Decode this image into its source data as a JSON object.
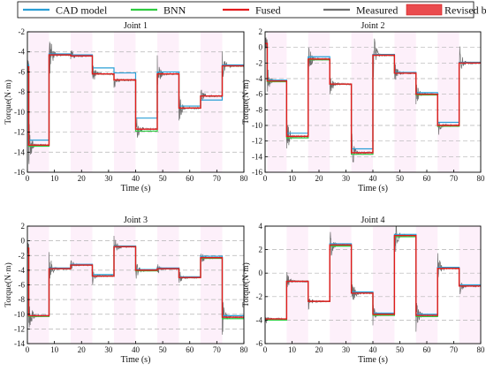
{
  "legend": {
    "items": [
      {
        "label": "CAD model",
        "color": "#2a9fd6",
        "kind": "line"
      },
      {
        "label": "BNN",
        "color": "#2ecc40",
        "kind": "line"
      },
      {
        "label": "Fused",
        "color": "#e41a1c",
        "kind": "line"
      },
      {
        "label": "Measured",
        "color": "#6e6e6e",
        "kind": "line"
      },
      {
        "label": "Revised by σ",
        "color": "#e8383b",
        "kind": "patch"
      }
    ]
  },
  "chart_data": [
    {
      "type": "line",
      "title": "Joint 1",
      "xlabel": "Time (s)",
      "ylabel": "Torque(N·m)",
      "xlim": [
        0,
        80
      ],
      "ylim": [
        -16,
        -2
      ],
      "xticks": [
        0,
        10,
        20,
        30,
        40,
        50,
        60,
        70,
        80
      ],
      "yticks": [
        -16,
        -14,
        -12,
        -10,
        -8,
        -6,
        -4,
        -2
      ],
      "grid": "horizontal-dashed",
      "segments": [
        {
          "x": [
            0,
            0.5
          ],
          "measured": -5.5,
          "cad": -5.3,
          "bnn": -5.5,
          "fused": -5.5
        },
        {
          "x": [
            0.5,
            8
          ],
          "measured": -13.3,
          "cad": -12.8,
          "bnn": -13.4,
          "fused": -13.3
        },
        {
          "x": [
            8,
            16
          ],
          "measured": -4.3,
          "cad": -4.2,
          "bnn": -4.3,
          "fused": -4.3
        },
        {
          "x": [
            16,
            24
          ],
          "measured": -4.4,
          "cad": -4.3,
          "bnn": -4.4,
          "fused": -4.4
        },
        {
          "x": [
            24,
            32
          ],
          "measured": -6.2,
          "cad": -5.6,
          "bnn": -6.2,
          "fused": -6.2
        },
        {
          "x": [
            32,
            40
          ],
          "measured": -6.8,
          "cad": -6.1,
          "bnn": -6.8,
          "fused": -6.8
        },
        {
          "x": [
            40,
            48
          ],
          "measured": -11.7,
          "cad": -10.6,
          "bnn": -11.9,
          "fused": -11.7
        },
        {
          "x": [
            48,
            56
          ],
          "measured": -6.2,
          "cad": -6.0,
          "bnn": -6.2,
          "fused": -6.2
        },
        {
          "x": [
            56,
            64
          ],
          "measured": -9.6,
          "cad": -9.4,
          "bnn": -9.6,
          "fused": -9.6
        },
        {
          "x": [
            64,
            72
          ],
          "measured": -8.4,
          "cad": -8.8,
          "bnn": -8.4,
          "fused": -8.4
        },
        {
          "x": [
            72,
            80
          ],
          "measured": -5.4,
          "cad": -5.3,
          "bnn": -5.4,
          "fused": -5.4
        }
      ]
    },
    {
      "type": "line",
      "title": "Joint 2",
      "xlabel": "Time (s)",
      "ylabel": "Torque(N·m)",
      "xlim": [
        0,
        80
      ],
      "ylim": [
        -16,
        2
      ],
      "xticks": [
        0,
        10,
        20,
        30,
        40,
        50,
        60,
        70,
        80
      ],
      "yticks": [
        -16,
        -14,
        -12,
        -10,
        -8,
        -6,
        -4,
        -2,
        0,
        2
      ],
      "grid": "horizontal-dashed",
      "segments": [
        {
          "x": [
            0,
            0.8
          ],
          "measured": 0.5,
          "cad": 0.5,
          "bnn": 0.5,
          "fused": 0.5
        },
        {
          "x": [
            0.8,
            8
          ],
          "measured": -4.3,
          "cad": -4.2,
          "bnn": -4.4,
          "fused": -4.3
        },
        {
          "x": [
            8,
            16
          ],
          "measured": -11.4,
          "cad": -11.0,
          "bnn": -11.6,
          "fused": -11.4
        },
        {
          "x": [
            16,
            24
          ],
          "measured": -1.5,
          "cad": -1.2,
          "bnn": -1.6,
          "fused": -1.5
        },
        {
          "x": [
            24,
            32
          ],
          "measured": -4.7,
          "cad": -4.7,
          "bnn": -4.7,
          "fused": -4.7
        },
        {
          "x": [
            32,
            40
          ],
          "measured": -13.5,
          "cad": -13.0,
          "bnn": -13.7,
          "fused": -13.5
        },
        {
          "x": [
            40,
            48
          ],
          "measured": -1.0,
          "cad": -0.9,
          "bnn": -1.0,
          "fused": -1.0
        },
        {
          "x": [
            48,
            56
          ],
          "measured": -3.3,
          "cad": -3.2,
          "bnn": -3.3,
          "fused": -3.3
        },
        {
          "x": [
            56,
            64
          ],
          "measured": -6.0,
          "cad": -5.8,
          "bnn": -6.1,
          "fused": -6.0
        },
        {
          "x": [
            64,
            72
          ],
          "measured": -10.0,
          "cad": -9.6,
          "bnn": -10.1,
          "fused": -10.0
        },
        {
          "x": [
            72,
            80
          ],
          "measured": -2.0,
          "cad": -1.9,
          "bnn": -2.0,
          "fused": -2.0
        }
      ]
    },
    {
      "type": "line",
      "title": "Joint 3",
      "xlabel": "Time (s)",
      "ylabel": "Torque(N·m)",
      "xlim": [
        0,
        80
      ],
      "ylim": [
        -14,
        2
      ],
      "xticks": [
        0,
        10,
        20,
        30,
        40,
        50,
        60,
        70,
        80
      ],
      "yticks": [
        -14,
        -12,
        -10,
        -8,
        -6,
        -4,
        -2,
        0,
        2
      ],
      "grid": "horizontal-dashed",
      "segments": [
        {
          "x": [
            0,
            0.5
          ],
          "measured": -1.0,
          "cad": -1.0,
          "bnn": -1.0,
          "fused": -1.0
        },
        {
          "x": [
            0.5,
            8
          ],
          "measured": -10.2,
          "cad": -10.2,
          "bnn": -10.3,
          "fused": -10.2
        },
        {
          "x": [
            8,
            16
          ],
          "measured": -3.8,
          "cad": -3.7,
          "bnn": -3.8,
          "fused": -3.8
        },
        {
          "x": [
            16,
            24
          ],
          "measured": -3.3,
          "cad": -3.2,
          "bnn": -3.3,
          "fused": -3.3
        },
        {
          "x": [
            24,
            32
          ],
          "measured": -4.8,
          "cad": -4.6,
          "bnn": -4.8,
          "fused": -4.8
        },
        {
          "x": [
            32,
            40
          ],
          "measured": -0.8,
          "cad": -0.7,
          "bnn": -0.8,
          "fused": -0.8
        },
        {
          "x": [
            40,
            48
          ],
          "measured": -4.0,
          "cad": -3.9,
          "bnn": -4.1,
          "fused": -4.0
        },
        {
          "x": [
            48,
            56
          ],
          "measured": -3.8,
          "cad": -3.7,
          "bnn": -3.8,
          "fused": -3.8
        },
        {
          "x": [
            56,
            64
          ],
          "measured": -5.0,
          "cad": -4.9,
          "bnn": -5.0,
          "fused": -5.0
        },
        {
          "x": [
            64,
            72
          ],
          "measured": -2.3,
          "cad": -2.1,
          "bnn": -2.4,
          "fused": -2.3
        },
        {
          "x": [
            72,
            80
          ],
          "measured": -10.4,
          "cad": -10.2,
          "bnn": -10.6,
          "fused": -10.4
        }
      ]
    },
    {
      "type": "line",
      "title": "Joint 4",
      "xlabel": "Time (s)",
      "ylabel": "Torque(N·m)",
      "xlim": [
        0,
        80
      ],
      "ylim": [
        -6,
        4
      ],
      "xticks": [
        0,
        10,
        20,
        30,
        40,
        50,
        60,
        70,
        80
      ],
      "yticks": [
        -6,
        -4,
        -2,
        0,
        2,
        4
      ],
      "grid": "horizontal-dashed",
      "segments": [
        {
          "x": [
            0,
            8
          ],
          "measured": -3.9,
          "cad": -3.9,
          "bnn": -4.0,
          "fused": -3.9
        },
        {
          "x": [
            8,
            16
          ],
          "measured": -0.7,
          "cad": -0.7,
          "bnn": -0.7,
          "fused": -0.7
        },
        {
          "x": [
            16,
            24
          ],
          "measured": -2.4,
          "cad": -2.4,
          "bnn": -2.4,
          "fused": -2.4
        },
        {
          "x": [
            24,
            32
          ],
          "measured": 2.4,
          "cad": 2.5,
          "bnn": 2.3,
          "fused": 2.4
        },
        {
          "x": [
            32,
            40
          ],
          "measured": -1.7,
          "cad": -1.6,
          "bnn": -1.7,
          "fused": -1.7
        },
        {
          "x": [
            40,
            48
          ],
          "measured": -3.5,
          "cad": -3.4,
          "bnn": -3.6,
          "fused": -3.5
        },
        {
          "x": [
            48,
            56
          ],
          "measured": 3.2,
          "cad": 3.3,
          "bnn": 3.1,
          "fused": 3.2
        },
        {
          "x": [
            56,
            64
          ],
          "measured": -3.6,
          "cad": -3.5,
          "bnn": -3.7,
          "fused": -3.6
        },
        {
          "x": [
            64,
            72
          ],
          "measured": 0.4,
          "cad": 0.5,
          "bnn": 0.4,
          "fused": 0.4
        },
        {
          "x": [
            72,
            80
          ],
          "measured": -1.1,
          "cad": -1.0,
          "bnn": -1.1,
          "fused": -1.1
        }
      ]
    }
  ]
}
